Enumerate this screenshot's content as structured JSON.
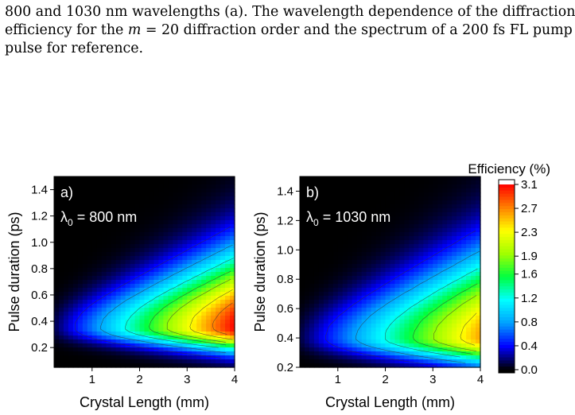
{
  "caption": {
    "line1": "800 and 1030 nm wavelengths (a). The wavelength dependence of the diffraction",
    "line2_pre": "efficiency for the ",
    "line2_var": "m",
    "line2_post": " = 20 diffraction order and the spectrum of a 200 fs FL pump",
    "line3": "pulse for reference."
  },
  "chart_data": [
    {
      "type": "heatmap",
      "panel_label": "a)",
      "annotation_prefix": "λ",
      "annotation_sub": "0",
      "annotation_suffix": " = 800 nm",
      "xlabel": "Crystal Length (mm)",
      "ylabel": "Pulse duration (ps)",
      "xlim": [
        0.2,
        4.0
      ],
      "ylim": [
        0.05,
        1.5
      ],
      "xticks": [
        "1",
        "2",
        "3",
        "4"
      ],
      "yticks": [
        "0.2",
        "0.4",
        "0.6",
        "0.8",
        "1.0",
        "1.2",
        "1.4"
      ],
      "peak": {
        "x": 3.9,
        "y": 0.35,
        "value": 3.1
      }
    },
    {
      "type": "heatmap",
      "panel_label": "b)",
      "annotation_prefix": "λ",
      "annotation_sub": "0",
      "annotation_suffix": " = 1030 nm",
      "xlabel": "Crystal Length (mm)",
      "ylabel": "Pulse duration (ps)",
      "xlim": [
        0.2,
        4.0
      ],
      "ylim": [
        0.2,
        1.5
      ],
      "xticks": [
        "1",
        "2",
        "3",
        "4"
      ],
      "yticks": [
        "0.2",
        "0.4",
        "0.6",
        "0.8",
        "1.0",
        "1.2",
        "1.4"
      ],
      "peak": {
        "x": 4.0,
        "y": 0.4,
        "value": 2.6
      }
    }
  ],
  "colorbar": {
    "title": "Efficiency (%)",
    "ticks": [
      "3.1",
      "2.7",
      "2.3",
      "1.9",
      "1.6",
      "1.2",
      "0.8",
      "0.4",
      "0.0"
    ],
    "range": [
      0.0,
      3.1
    ],
    "colors": [
      "#000000",
      "#0000ff",
      "#00a0ff",
      "#00ffff",
      "#00ff40",
      "#a0ff00",
      "#ffff00",
      "#ff8000",
      "#ff0000",
      "#ffffff"
    ]
  }
}
